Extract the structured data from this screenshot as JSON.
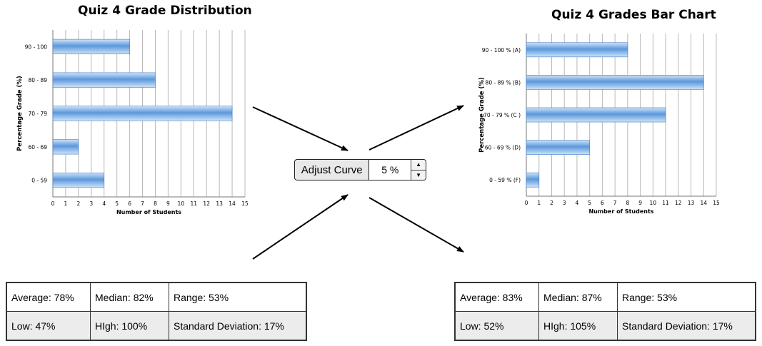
{
  "widget": {
    "label": "Adjust Curve",
    "value": "5 %",
    "up_glyph": "▲",
    "down_glyph": "▼"
  },
  "left_stats": {
    "row1": [
      "Average: 78%",
      "Median: 82%",
      "Range: 53%"
    ],
    "row2": [
      "Low: 47%",
      "HIgh: 100%",
      "Standard Deviation: 17%"
    ]
  },
  "right_stats": {
    "row1": [
      "Average: 83%",
      "Median: 87%",
      "Range: 53%"
    ],
    "row2": [
      "Low: 52%",
      "HIgh: 105%",
      "Standard Deviation: 17%"
    ]
  },
  "colors": {
    "bar_light": "#cfe3f8",
    "bar_dark": "#5b98dc",
    "bar_edge": "#3f7fc9",
    "grid": "#b8b8b8"
  },
  "chart_data": [
    {
      "type": "bar",
      "orientation": "horizontal",
      "title": "Quiz 4 Grade Distribution",
      "categories": [
        "90 - 100",
        "80 - 89",
        "70 - 79",
        "60 - 69",
        "0 - 59"
      ],
      "values": [
        6,
        8,
        14,
        2,
        4
      ],
      "xlabel": "Number of Students",
      "ylabel": "Percentage Grade (%)",
      "xlim": [
        0,
        15
      ],
      "xticks": [
        "0",
        "1",
        "2",
        "3",
        "4",
        "5",
        "6",
        "7",
        "8",
        "9",
        "10",
        "11",
        "12",
        "13",
        "14",
        "15"
      ],
      "grid": "vertical"
    },
    {
      "type": "bar",
      "orientation": "horizontal",
      "title": "Quiz 4 Grades Bar Chart",
      "categories": [
        "90 - 100 % (A)",
        "80 - 89 % (B)",
        "70 - 79 % (C )",
        "60 - 69 % (D)",
        "0 - 59 % (F)"
      ],
      "values": [
        8,
        14,
        11,
        5,
        1
      ],
      "xlabel": "Number of Students",
      "ylabel": "Percentage Grade (%)",
      "xlim": [
        0,
        15
      ],
      "xticks": [
        "0",
        "1",
        "2",
        "3",
        "4",
        "5",
        "6",
        "7",
        "8",
        "9",
        "10",
        "11",
        "12",
        "13",
        "14",
        "15"
      ],
      "grid": "vertical"
    }
  ]
}
